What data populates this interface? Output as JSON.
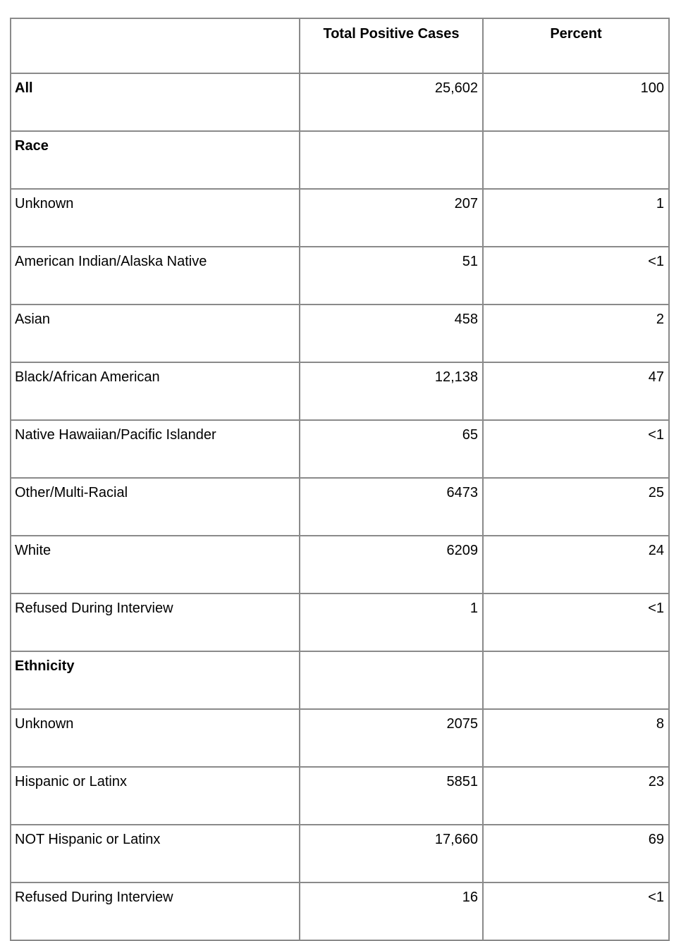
{
  "chart_data": {
    "type": "table",
    "columns": [
      "",
      "Total Positive Cases",
      "Percent"
    ],
    "rows": [
      {
        "label": "All",
        "bold": true,
        "total_positive_cases": "25,602",
        "percent": "100"
      },
      {
        "label": "Race",
        "bold": true,
        "total_positive_cases": "",
        "percent": ""
      },
      {
        "label": "Unknown",
        "bold": false,
        "total_positive_cases": "207",
        "percent": "1"
      },
      {
        "label": "American Indian/Alaska Native",
        "bold": false,
        "total_positive_cases": "51",
        "percent": "<1"
      },
      {
        "label": "Asian",
        "bold": false,
        "total_positive_cases": "458",
        "percent": "2"
      },
      {
        "label": "Black/African American",
        "bold": false,
        "total_positive_cases": "12,138",
        "percent": "47"
      },
      {
        "label": "Native Hawaiian/Pacific Islander",
        "bold": false,
        "total_positive_cases": "65",
        "percent": "<1"
      },
      {
        "label": "Other/Multi-Racial",
        "bold": false,
        "total_positive_cases": "6473",
        "percent": "25"
      },
      {
        "label": "White",
        "bold": false,
        "total_positive_cases": "6209",
        "percent": "24"
      },
      {
        "label": "Refused During Interview",
        "bold": false,
        "total_positive_cases": "1",
        "percent": "<1"
      },
      {
        "label": "Ethnicity",
        "bold": true,
        "total_positive_cases": "",
        "percent": ""
      },
      {
        "label": "Unknown",
        "bold": false,
        "total_positive_cases": "2075",
        "percent": "8"
      },
      {
        "label": "Hispanic or Latinx",
        "bold": false,
        "total_positive_cases": "5851",
        "percent": "23"
      },
      {
        "label": "NOT Hispanic or Latinx",
        "bold": false,
        "total_positive_cases": "17,660",
        "percent": "69"
      },
      {
        "label": "Refused During Interview",
        "bold": false,
        "total_positive_cases": "16",
        "percent": "<1"
      }
    ],
    "layout": {
      "grid": true,
      "header_align": "center",
      "value_align": "right"
    },
    "colors": {
      "border": "#8a8a8a",
      "text": "#000000",
      "background": "#ffffff"
    }
  }
}
